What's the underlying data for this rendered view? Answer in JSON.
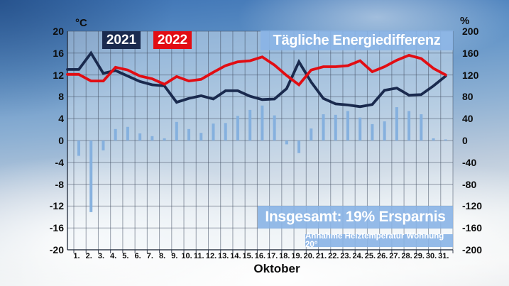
{
  "header": {
    "title": "Tägliche Energiedifferenz",
    "legend": [
      {
        "label": "2021",
        "color": "#1a2a4e",
        "text_color": "#ffffff"
      },
      {
        "label": "2022",
        "color": "#e20d13",
        "text_color": "#ffffff"
      }
    ]
  },
  "axes": {
    "left_unit": "°C",
    "left_ticks": [
      "20",
      "16",
      "12",
      "8",
      "4",
      "0",
      "-4",
      "-8",
      "-12",
      "-16",
      "-20"
    ],
    "right_unit": "%",
    "right_ticks": [
      "200",
      "160",
      "120",
      "80",
      "40",
      "0",
      "-40",
      "-80",
      "-120",
      "-160",
      "-200"
    ],
    "x_tick_labels": [
      "1.",
      "2.",
      "3.",
      "4.",
      "5.",
      "6.",
      "7.",
      "8.",
      "9.",
      "10.",
      "11.",
      "12.",
      "13.",
      "14.",
      "15.",
      "16.",
      "17.",
      "18.",
      "19.",
      "20.",
      "21.",
      "22.",
      "23.",
      "24.",
      "25.",
      "26.",
      "27.",
      "28.",
      "29.",
      "30.",
      "31."
    ],
    "x_label": "Oktober"
  },
  "overlays": {
    "summary": "Insgesamt: 19% Ersparnis",
    "assumption": "Annahme Heiztemperatur Wohnung 20°"
  },
  "chart_data": {
    "type": "line+bar",
    "title": "Tägliche Energiedifferenz",
    "x_label": "Oktober",
    "x": [
      1,
      2,
      3,
      4,
      5,
      6,
      7,
      8,
      9,
      10,
      11,
      12,
      13,
      14,
      15,
      16,
      17,
      18,
      19,
      20,
      21,
      22,
      23,
      24,
      25,
      26,
      27,
      28,
      29,
      30,
      31
    ],
    "axis_left": {
      "unit": "°C",
      "range": [
        -20,
        20
      ],
      "tick_step": 4
    },
    "axis_right": {
      "unit": "%",
      "range": [
        -200,
        200
      ],
      "tick_step": 40
    },
    "grid": true,
    "legend_position": "top-left",
    "series": [
      {
        "name": "2021",
        "type": "line",
        "axis": "left",
        "unit": "°C",
        "color": "#1a2a4e",
        "values": [
          13,
          16,
          12.3,
          12.8,
          11.8,
          10.8,
          10.2,
          10,
          7,
          7.7,
          8.2,
          7.6,
          9.1,
          9.1,
          8.1,
          7.5,
          7.6,
          9.5,
          14.4,
          10.7,
          7.7,
          6.7,
          6.5,
          6.2,
          6.6,
          9.2,
          9.6,
          8.3,
          8.4,
          10,
          11.8
        ]
      },
      {
        "name": "2022",
        "type": "line",
        "axis": "left",
        "unit": "°C",
        "color": "#e20d13",
        "values": [
          12.1,
          10.9,
          10.9,
          13.4,
          12.9,
          11.8,
          11.3,
          10.3,
          11.7,
          10.9,
          11.2,
          12.5,
          13.7,
          14.4,
          14.6,
          15.3,
          13.8,
          11.9,
          10.2,
          12.9,
          13.5,
          13.5,
          13.7,
          14.6,
          12.6,
          13.5,
          14.7,
          15.6,
          15,
          13.2,
          12
        ]
      },
      {
        "name": "Tägliche Energiedifferenz",
        "type": "bar",
        "axis": "right",
        "unit": "%",
        "color": "#82aedd",
        "values": [
          -28,
          -131,
          -18,
          21,
          25,
          13,
          8,
          4,
          34,
          21,
          14,
          31,
          32,
          45,
          56,
          64,
          46,
          -7,
          -23,
          22,
          48,
          47,
          54,
          42,
          30,
          35,
          61,
          54,
          48,
          4,
          2
        ]
      }
    ]
  }
}
